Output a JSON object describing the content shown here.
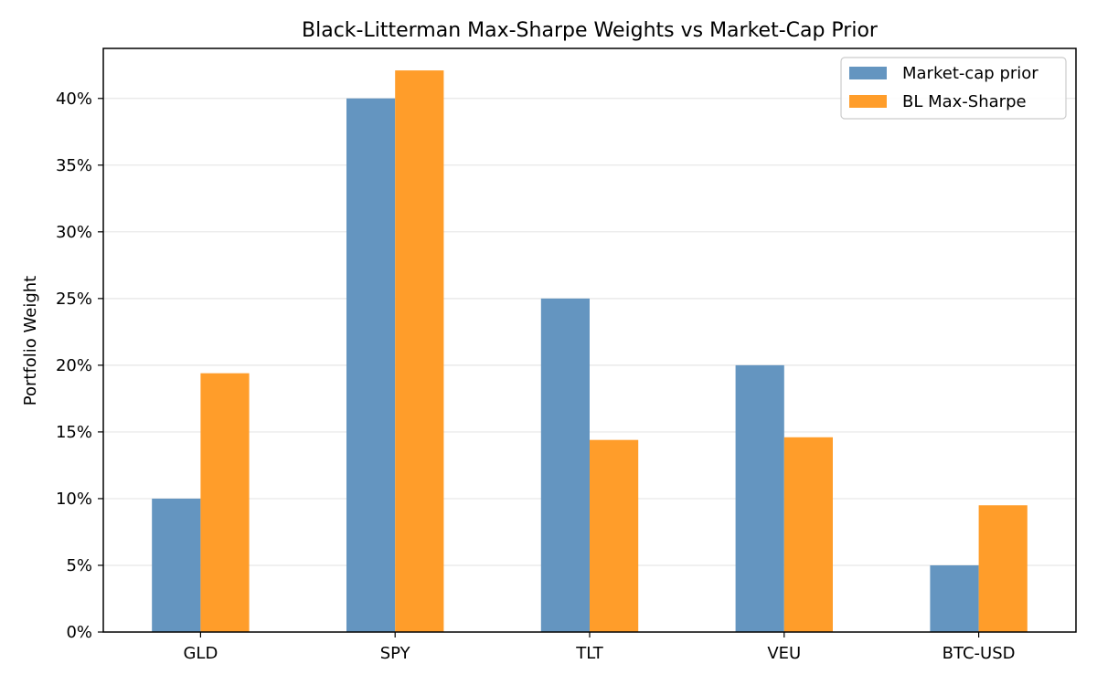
{
  "chart_data": {
    "type": "bar",
    "title": "Black-Litterman Max-Sharpe Weights vs Market-Cap Prior",
    "xlabel": "",
    "ylabel": "Portfolio Weight",
    "categories": [
      "GLD",
      "SPY",
      "TLT",
      "VEU",
      "BTC-USD"
    ],
    "series": [
      {
        "name": "Market-cap prior",
        "values": [
          0.1,
          0.4,
          0.25,
          0.2,
          0.05
        ],
        "color": "#6495C0"
      },
      {
        "name": "BL Max-Sharpe",
        "values": [
          0.194,
          0.421,
          0.144,
          0.146,
          0.095
        ],
        "color": "#FF9D2A"
      }
    ],
    "ylim": [
      0,
      0.4375
    ],
    "yticks": [
      0,
      0.05,
      0.1,
      0.15,
      0.2,
      0.25,
      0.3,
      0.35,
      0.4
    ],
    "ytick_labels": [
      "0%",
      "5%",
      "10%",
      "15%",
      "20%",
      "25%",
      "30%",
      "35%",
      "40%"
    ],
    "grid": "horizontal",
    "legend_position": "top-right"
  }
}
